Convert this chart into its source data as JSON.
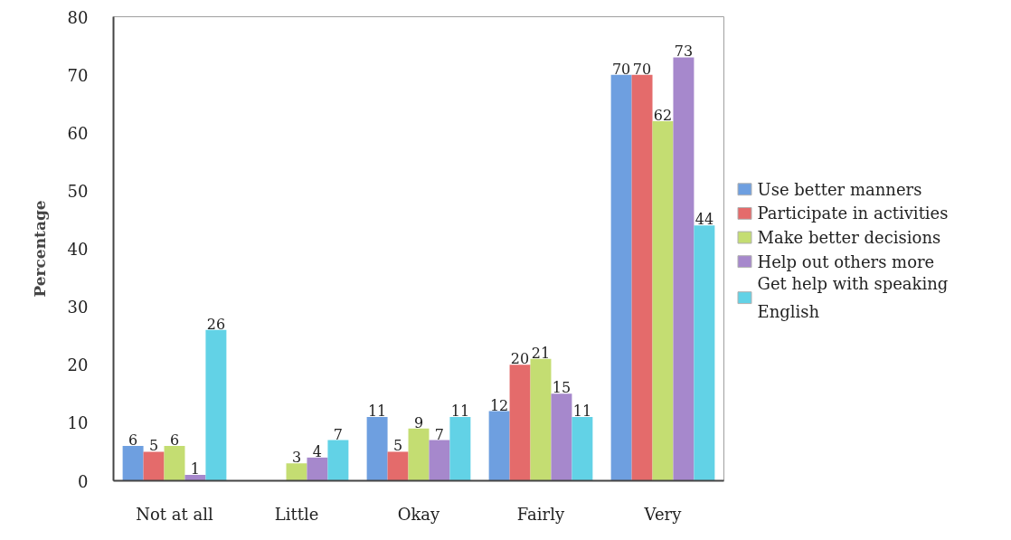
{
  "chart_data": {
    "type": "bar",
    "ylabel": "Percentage",
    "categories": [
      "Not at all",
      "Little",
      "Okay",
      "Fairly",
      "Very"
    ],
    "series": [
      {
        "name": "Use better manners",
        "color": "#6e9fe0",
        "values": [
          6,
          null,
          11,
          12,
          70
        ]
      },
      {
        "name": "Participate in activities",
        "color": "#e46b6b",
        "values": [
          5,
          null,
          5,
          20,
          70
        ]
      },
      {
        "name": "Make better decisions",
        "color": "#c4dd72",
        "values": [
          6,
          3,
          9,
          21,
          62
        ]
      },
      {
        "name": "Help out others more",
        "color": "#a688cc",
        "values": [
          1,
          4,
          7,
          15,
          73
        ]
      },
      {
        "name": "Get help with speaking English",
        "color": "#62d2e6",
        "values": [
          26,
          7,
          11,
          11,
          44
        ]
      }
    ],
    "ylim": [
      0,
      80
    ],
    "yticks": [
      0,
      10,
      20,
      30,
      40,
      50,
      60,
      70,
      80
    ],
    "data_labels": true,
    "legend": "right",
    "grid": false
  }
}
